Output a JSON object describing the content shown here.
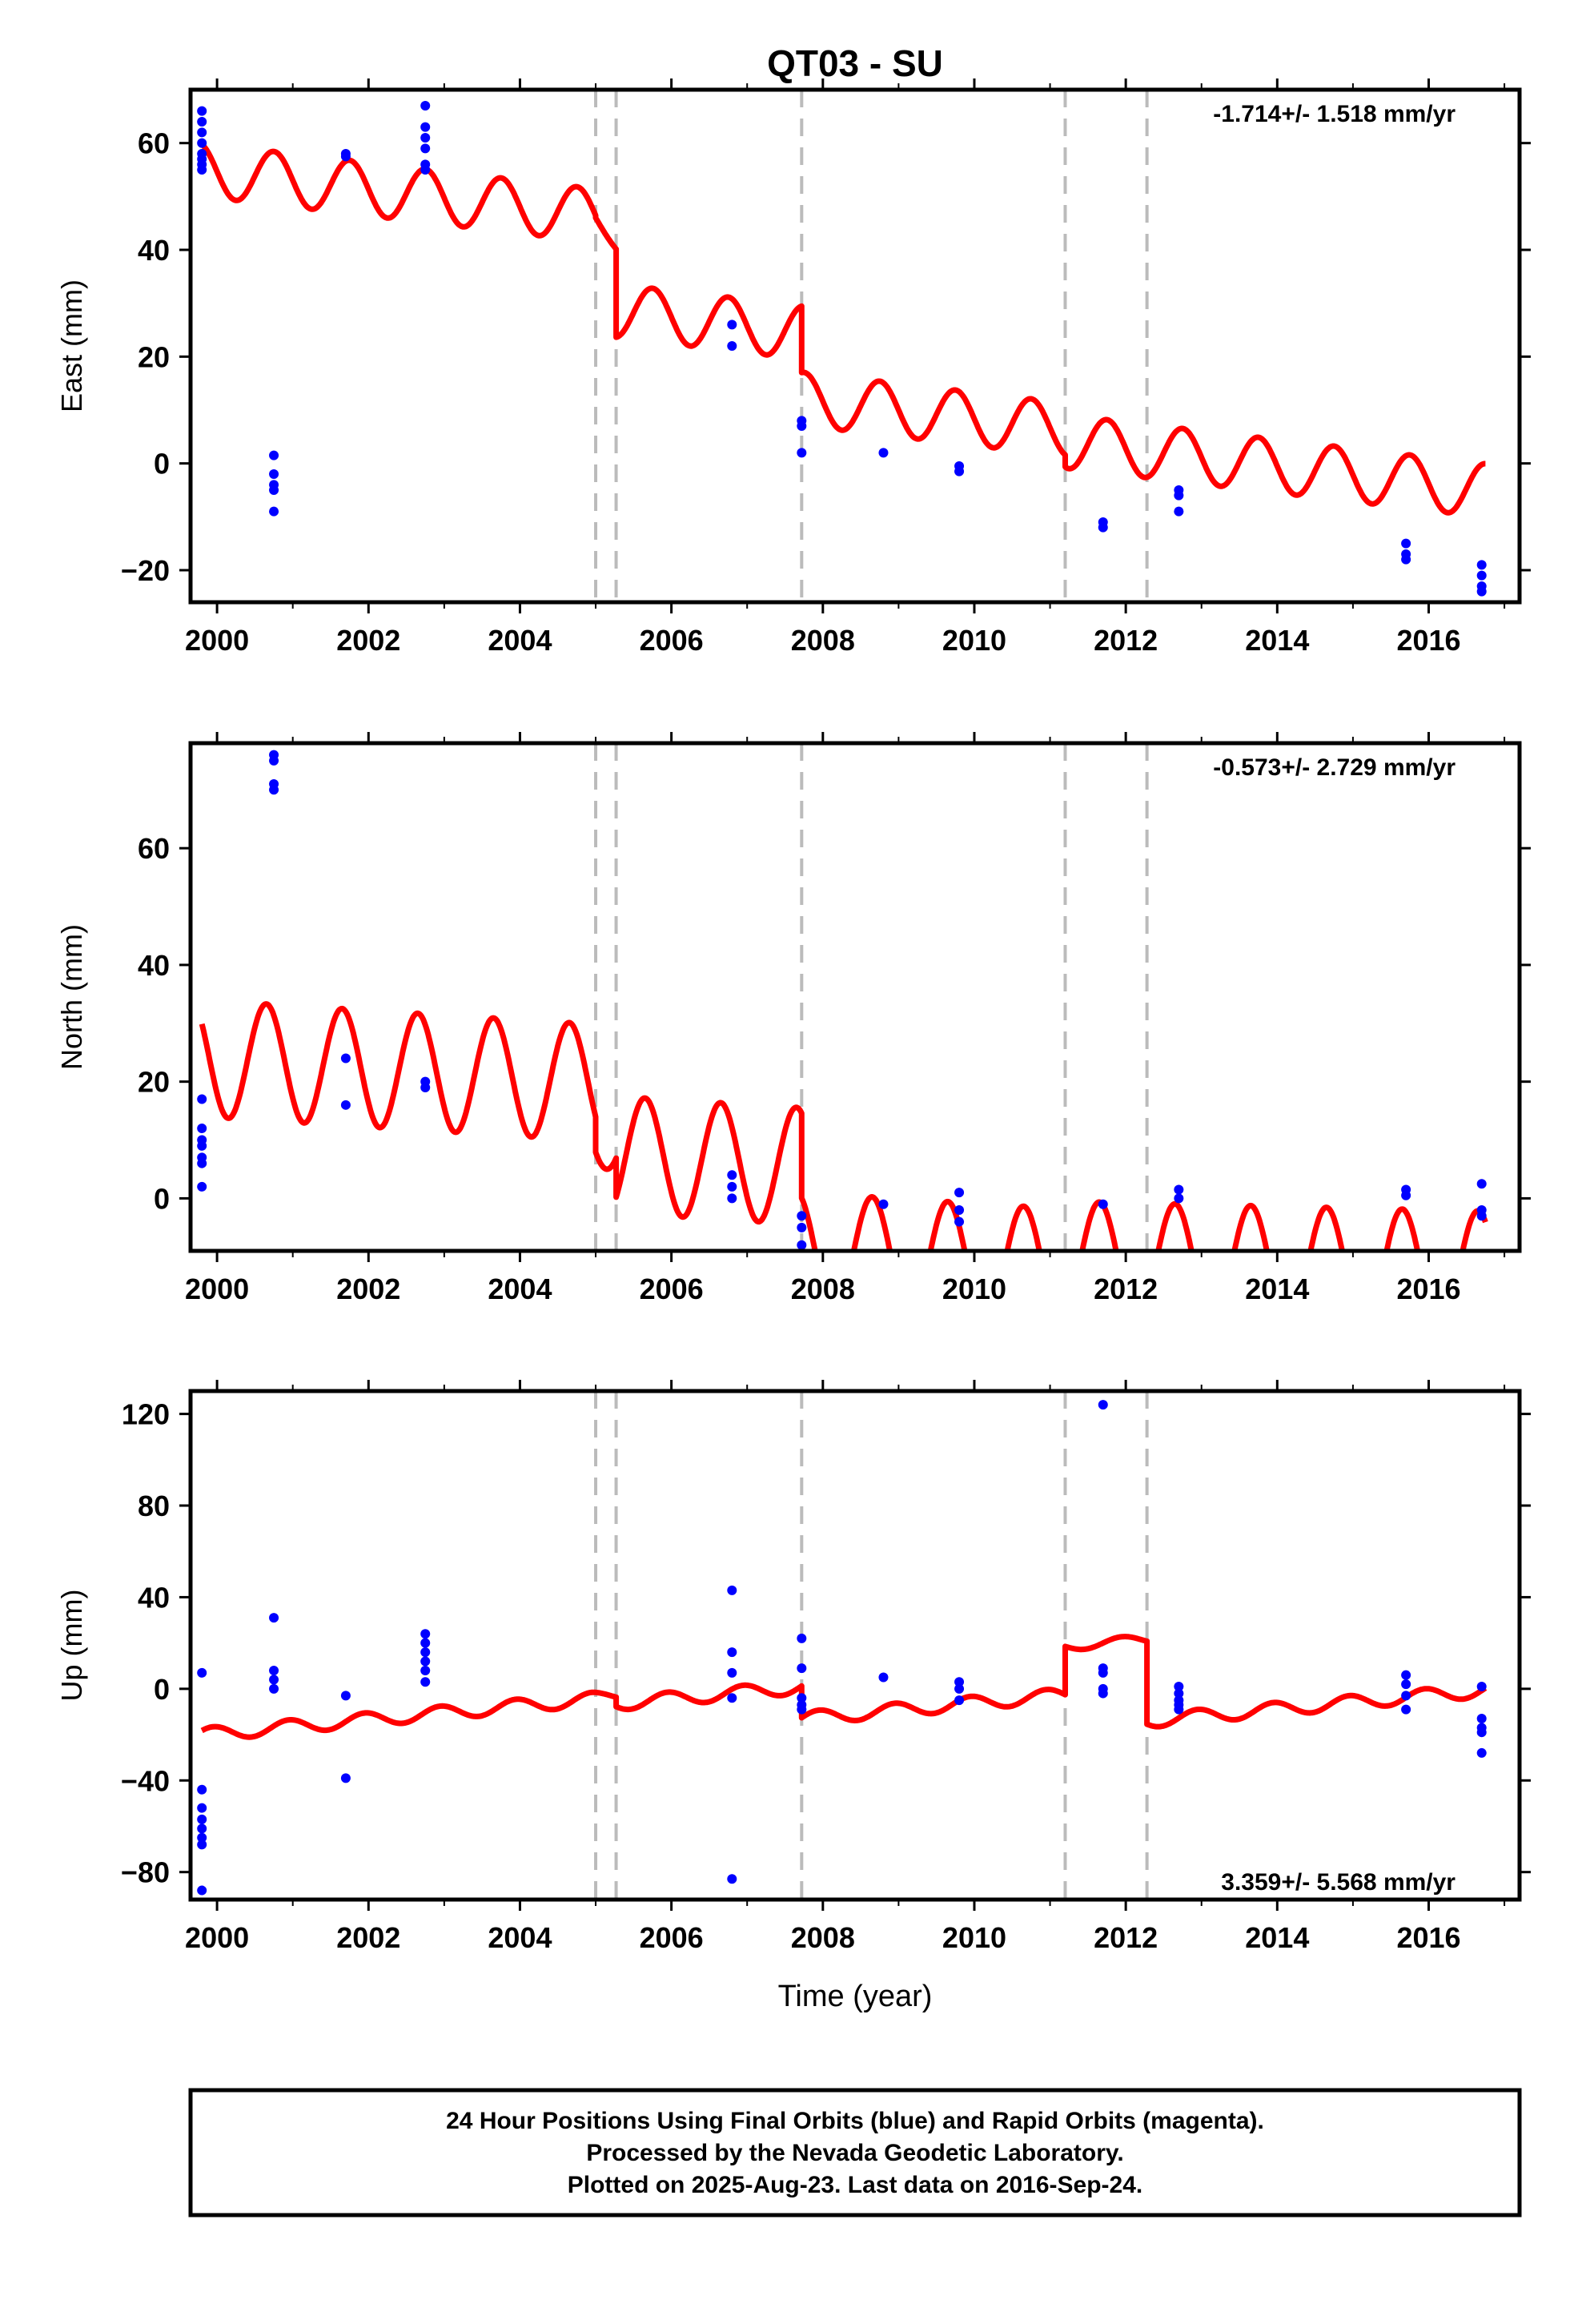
{
  "chart_data": {
    "type": "scatter",
    "title": "QT03 - SU",
    "xlabel": "Time (year)",
    "xlim": [
      1999.65,
      2017.2
    ],
    "xticks": [
      2000,
      2002,
      2004,
      2006,
      2008,
      2010,
      2012,
      2014,
      2016
    ],
    "offset_lines": [
      2005.0,
      2005.27,
      2007.72,
      2011.2,
      2012.28
    ],
    "colors": {
      "model": "#ff0000",
      "final_orbits": "#0000ff",
      "offset_line": "#bbbbbb"
    },
    "panels": [
      {
        "name": "east",
        "ylabel": "East (mm)",
        "ylim": [
          -26,
          70
        ],
        "yticks": [
          -20,
          0,
          20,
          40,
          60
        ],
        "rate_text": "-1.714+/- 1.518 mm/yr",
        "series": [
          {
            "type": "scatter",
            "color": "#0000ff",
            "x": [
              1999.8,
              1999.8,
              1999.8,
              1999.8,
              1999.8,
              1999.8,
              1999.8,
              1999.8,
              2000.75,
              2000.75,
              2000.75,
              2000.75,
              2000.75,
              2001.7,
              2001.7,
              2002.75,
              2002.75,
              2002.75,
              2002.75,
              2002.75,
              2002.75,
              2006.8,
              2006.8,
              2007.72,
              2007.72,
              2007.72,
              2008.8,
              2009.8,
              2009.8,
              2011.7,
              2011.7,
              2012.7,
              2012.7,
              2012.7,
              2015.7,
              2015.7,
              2015.7,
              2016.7,
              2016.7,
              2016.7,
              2016.7
            ],
            "y": [
              66,
              64,
              62,
              60,
              58,
              57,
              56,
              55,
              1.5,
              -2,
              -4,
              -5,
              -9,
              58,
              57.5,
              67,
              63,
              61,
              59,
              56,
              55,
              26,
              22,
              8,
              7,
              2,
              2,
              -0.5,
              -1.5,
              -11,
              -12,
              -5,
              -6,
              -9,
              -15,
              -17,
              -18,
              -19,
              -21,
              -23,
              -24
            ]
          },
          {
            "type": "model",
            "name": "",
            "color": "#ff0000",
            "segments": [
              {
                "x": [
                  1999.8,
                  2005.0
                ],
                "a": 55.0,
                "b": -1.65,
                "amp": 5.0,
                "phase": 0.5
              },
              {
                "x": [
                  2005.0,
                  2005.27
                ],
                "a": 46.0,
                "b": -18.0,
                "amp": 1.0,
                "phase": 0.5
              },
              {
                "x": [
                  2005.27,
                  2007.72
                ],
                "a": 28.6,
                "b": -1.65,
                "amp": 5.0,
                "phase": 0.5
              },
              {
                "x": [
                  2007.72,
                  2011.2
                ],
                "a": 12.1,
                "b": -1.65,
                "amp": 5.0,
                "phase": 0.5
              },
              {
                "x": [
                  2011.2,
                  2016.75
                ],
                "a": 4.1,
                "b": -1.65,
                "amp": 5.0,
                "phase": 0.5
              }
            ]
          }
        ]
      },
      {
        "name": "north",
        "ylabel": "North (mm)",
        "ylim": [
          -9,
          78
        ],
        "yticks": [
          0,
          20,
          40,
          60
        ],
        "rate_text": "-0.573+/- 2.729 mm/yr",
        "series": [
          {
            "type": "scatter",
            "color": "#0000ff",
            "x": [
              1999.8,
              1999.8,
              1999.8,
              1999.8,
              1999.8,
              1999.8,
              1999.8,
              2000.75,
              2000.75,
              2000.75,
              2000.75,
              2001.7,
              2001.7,
              2002.75,
              2002.75,
              2006.8,
              2006.8,
              2006.8,
              2007.72,
              2007.72,
              2007.72,
              2008.8,
              2009.8,
              2009.8,
              2009.8,
              2011.7,
              2012.7,
              2012.7,
              2015.7,
              2015.7,
              2016.7,
              2016.7,
              2016.7
            ],
            "y": [
              17,
              12,
              10,
              9,
              7,
              6,
              2,
              76,
              75,
              71,
              70,
              24,
              16,
              20,
              19,
              4,
              2,
              0,
              -3,
              -5,
              -8,
              -1,
              1,
              -2,
              -4,
              -1,
              1.5,
              0,
              1.5,
              0.5,
              2.5,
              -2,
              -3
            ]
          },
          {
            "type": "model",
            "name": "",
            "color": "#ff0000",
            "segments": [
              {
                "x": [
                  1999.8,
                  2005.0
                ],
                "a": 24.0,
                "b": -0.8,
                "amp": 10.0,
                "phase": 0.6
              },
              {
                "x": [
                  2005.0,
                  2005.27
                ],
                "a": 12.0,
                "b": 0.0,
                "amp": 7.0,
                "phase": 0.6
              },
              {
                "x": [
                  2005.27,
                  2007.72
                ],
                "a": 7.5,
                "b": -0.8,
                "amp": 10.0,
                "phase": 0.6
              },
              {
                "x": [
                  2007.72,
                  2011.2
                ],
                "a": -9.0,
                "b": -0.8,
                "amp": 10.0,
                "phase": 0.6
              },
              {
                "x": [
                  2011.2,
                  2016.75
                ],
                "a": -10.5,
                "b": -0.3,
                "amp": 10.0,
                "phase": 0.6
              }
            ]
          }
        ]
      },
      {
        "name": "up",
        "ylabel": "Up (mm)",
        "ylim": [
          -92,
          130
        ],
        "yticks": [
          -80,
          -40,
          0,
          40,
          80,
          120
        ],
        "rate_text": "3.359+/- 5.568 mm/yr",
        "series": [
          {
            "type": "scatter",
            "color": "#0000ff",
            "x": [
              1999.8,
              1999.8,
              1999.8,
              1999.8,
              1999.8,
              1999.8,
              1999.8,
              1999.8,
              2000.75,
              2000.75,
              2000.75,
              2000.75,
              2001.7,
              2001.7,
              2002.75,
              2002.75,
              2002.75,
              2002.75,
              2002.75,
              2002.75,
              2006.8,
              2006.8,
              2006.8,
              2006.8,
              2006.8,
              2007.72,
              2007.72,
              2007.72,
              2007.72,
              2007.72,
              2008.8,
              2009.8,
              2009.8,
              2009.8,
              2011.7,
              2011.7,
              2011.7,
              2011.7,
              2011.7,
              2012.7,
              2012.7,
              2012.7,
              2012.7,
              2012.7,
              2015.7,
              2015.7,
              2015.7,
              2015.7,
              2016.7,
              2016.7,
              2016.7,
              2016.7,
              2016.7
            ],
            "y": [
              7,
              -44,
              -52,
              -57,
              -61,
              -65,
              -68,
              -88,
              31,
              8,
              4,
              0,
              -3,
              -39,
              24,
              20,
              16,
              12,
              8,
              3,
              43,
              16,
              7,
              -4,
              -83,
              22,
              9,
              -4,
              -7,
              -9,
              5,
              3,
              0,
              -5,
              124,
              9,
              7,
              0,
              -2,
              1,
              -2,
              -5,
              -7,
              -9,
              6,
              2,
              -3,
              -9,
              1,
              -13,
              -17,
              -19,
              -28
            ]
          },
          {
            "type": "model",
            "name": "",
            "color": "#ff0000",
            "segments": [
              {
                "x": [
                  1999.8,
                  2005.0
                ],
                "a": -20.0,
                "b": 3.0,
                "amp": 3.0,
                "phase": 0.3
              },
              {
                "x": [
                  2005.0,
                  2005.27
                ],
                "a": -3.0,
                "b": 0.0,
                "amp": 1.5,
                "phase": 0.3
              },
              {
                "x": [
                  2005.27,
                  2007.72
                ],
                "a": -6.5,
                "b": 3.0,
                "amp": 3.0,
                "phase": 0.3
              },
              {
                "x": [
                  2007.72,
                  2011.2
                ],
                "a": -13.0,
                "b": 3.0,
                "amp": 3.0,
                "phase": 0.3
              },
              {
                "x": [
                  2011.2,
                  2012.28
                ],
                "a": 18.5,
                "b": 3.0,
                "amp": 2.0,
                "phase": 0.3
              },
              {
                "x": [
                  2012.28,
                  2016.75
                ],
                "a": -14.0,
                "b": 3.0,
                "amp": 3.0,
                "phase": 0.3
              }
            ]
          }
        ]
      }
    ]
  },
  "caption": {
    "line1": "24 Hour Positions Using Final Orbits (blue) and Rapid Orbits (magenta).",
    "line2": "Processed by the Nevada Geodetic Laboratory.",
    "line3": "Plotted on 2025-Aug-23. Last data on 2016-Sep-24."
  }
}
